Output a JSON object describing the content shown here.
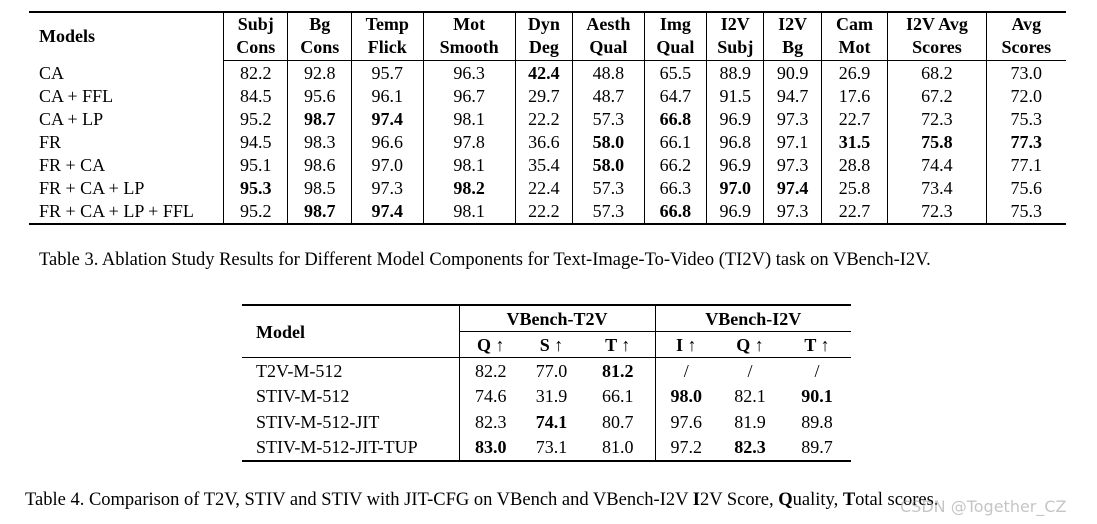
{
  "table3": {
    "header_line1": [
      "Models",
      "Subj",
      "Bg",
      "Temp",
      "Mot",
      "Dyn",
      "Aesth",
      "Img",
      "I2V",
      "I2V",
      "Cam",
      "I2V Avg",
      "Avg"
    ],
    "header_line2": [
      "",
      "Cons",
      "Cons",
      "Flick",
      "Smooth",
      "Deg",
      "Qual",
      "Qual",
      "Subj",
      "Bg",
      "Mot",
      "Scores",
      "Scores"
    ],
    "rows": [
      {
        "model": "CA",
        "values": [
          "82.2",
          "92.8",
          "95.7",
          "96.3",
          "42.4",
          "48.8",
          "65.5",
          "88.9",
          "90.9",
          "26.9",
          "68.2",
          "73.0"
        ],
        "bold": [
          false,
          false,
          false,
          false,
          true,
          false,
          false,
          false,
          false,
          false,
          false,
          false
        ]
      },
      {
        "model": "CA + FFL",
        "values": [
          "84.5",
          "95.6",
          "96.1",
          "96.7",
          "29.7",
          "48.7",
          "64.7",
          "91.5",
          "94.7",
          "17.6",
          "67.2",
          "72.0"
        ],
        "bold": [
          false,
          false,
          false,
          false,
          false,
          false,
          false,
          false,
          false,
          false,
          false,
          false
        ]
      },
      {
        "model": "CA + LP",
        "values": [
          "95.2",
          "98.7",
          "97.4",
          "98.1",
          "22.2",
          "57.3",
          "66.8",
          "96.9",
          "97.3",
          "22.7",
          "72.3",
          "75.3"
        ],
        "bold": [
          false,
          true,
          true,
          false,
          false,
          false,
          true,
          false,
          false,
          false,
          false,
          false
        ]
      },
      {
        "model": "FR",
        "values": [
          "94.5",
          "98.3",
          "96.6",
          "97.8",
          "36.6",
          "58.0",
          "66.1",
          "96.8",
          "97.1",
          "31.5",
          "75.8",
          "77.3"
        ],
        "bold": [
          false,
          false,
          false,
          false,
          false,
          true,
          false,
          false,
          false,
          true,
          true,
          true
        ]
      },
      {
        "model": "FR + CA",
        "values": [
          "95.1",
          "98.6",
          "97.0",
          "98.1",
          "35.4",
          "58.0",
          "66.2",
          "96.9",
          "97.3",
          "28.8",
          "74.4",
          "77.1"
        ],
        "bold": [
          false,
          false,
          false,
          false,
          false,
          true,
          false,
          false,
          false,
          false,
          false,
          false
        ]
      },
      {
        "model": "FR + CA + LP",
        "values": [
          "95.3",
          "98.5",
          "97.3",
          "98.2",
          "22.4",
          "57.3",
          "66.3",
          "97.0",
          "97.4",
          "25.8",
          "73.4",
          "75.6"
        ],
        "bold": [
          true,
          false,
          false,
          true,
          false,
          false,
          false,
          true,
          true,
          false,
          false,
          false
        ]
      },
      {
        "model": "FR + CA + LP + FFL",
        "values": [
          "95.2",
          "98.7",
          "97.4",
          "98.1",
          "22.2",
          "57.3",
          "66.8",
          "96.9",
          "97.3",
          "22.7",
          "72.3",
          "75.3"
        ],
        "bold": [
          false,
          true,
          true,
          false,
          false,
          false,
          true,
          false,
          false,
          false,
          false,
          false
        ]
      }
    ],
    "caption": "Table 3. Ablation Study Results for Different Model Components for Text-Image-To-Video (TI2V) task on VBench-I2V."
  },
  "table4": {
    "model_header": "Model",
    "group_t2v": "VBench-T2V",
    "group_i2v": "VBench-I2V",
    "sub_headers": [
      "Q ↑",
      "S ↑",
      "T ↑",
      "I ↑",
      "Q ↑",
      "T ↑"
    ],
    "rows": [
      {
        "model": "T2V-M-512",
        "values": [
          "82.2",
          "77.0",
          "81.2",
          "/",
          "/",
          "/"
        ],
        "bold": [
          false,
          false,
          true,
          false,
          false,
          false
        ]
      },
      {
        "model": "STIV-M-512",
        "values": [
          "74.6",
          "31.9",
          "66.1",
          "98.0",
          "82.1",
          "90.1"
        ],
        "bold": [
          false,
          false,
          false,
          true,
          false,
          true
        ]
      },
      {
        "model": "STIV-M-512-JIT",
        "values": [
          "82.3",
          "74.1",
          "80.7",
          "97.6",
          "81.9",
          "89.8"
        ],
        "bold": [
          false,
          true,
          false,
          false,
          false,
          false
        ]
      },
      {
        "model": "STIV-M-512-JIT-TUP",
        "values": [
          "83.0",
          "73.1",
          "81.0",
          "97.2",
          "82.3",
          "89.7"
        ],
        "bold": [
          true,
          false,
          false,
          false,
          true,
          false
        ]
      }
    ],
    "caption_parts": [
      "Table 4. Comparison of T2V, STIV and STIV with JIT-CFG on VBench and VBench-I2V ",
      "I",
      "2V Score, ",
      "Q",
      "uality, ",
      "T",
      "otal scores."
    ]
  },
  "watermark": "CSDN @Together_CZ"
}
